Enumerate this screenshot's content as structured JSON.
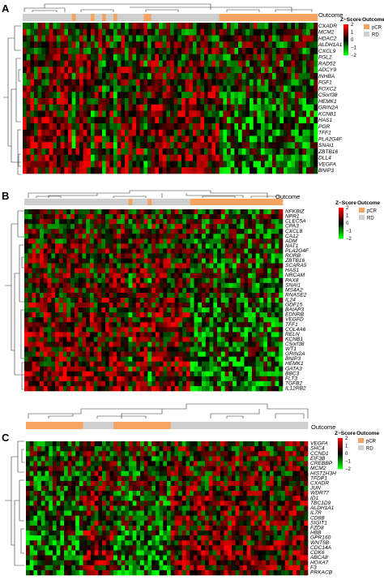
{
  "colors": {
    "high": "#ff0000",
    "mid": "#000000",
    "low": "#00ff00",
    "pCR": "#f4a460",
    "RD": "#cfcfcf"
  },
  "legend": {
    "title": "Z−Score",
    "ticks": [
      "2",
      "1",
      "0",
      "−1",
      "−2"
    ],
    "outcome_title": "Outcome",
    "pcr": "pCR",
    "rd": "RD"
  },
  "panels": [
    {
      "label": "A",
      "outcome_label": "Outcome",
      "outcome": "RRRRRRRRRRRRRPRRRRPRRPRRPRRRRRRRPPRRRRRRRRRRRRRRRRRRPPPPPPPPPPPPPPPPPPPPPPPPPP",
      "genes": [
        "CXADR",
        "MCM2",
        "HDAC2",
        "ALDH1A1",
        "CXCL9",
        "FGL2",
        "RAD52",
        "ADCY9",
        "INHBA",
        "FGF1",
        "FOXC2",
        "C5orf38",
        "HEMK1",
        "GRIN2A",
        "KCNB1",
        "HAS1",
        "PGR",
        "TFF1",
        "PLA2G4F",
        "SNAI1",
        "ZBTB16",
        "DLL4",
        "VEGFA",
        "BNIP3"
      ]
    },
    {
      "label": "B",
      "outcome_label": "Outcome",
      "outcome": "RRRRRRRRRRRRRRRRRRRRRRRRRRRPRRRRPRRRRRRRRRRPPPPPPPPPPPPPPPPPPPPPPPP",
      "genes": [
        "NFKBIZ",
        "NPR1",
        "CLEC5A",
        "CPA3",
        "CXCL8",
        "CA12",
        "ADM",
        "NAT1",
        "PLA2G4F",
        "RORB",
        "ZBTB16",
        "SCARA5",
        "HAS1",
        "NRCAM",
        "PAX8",
        "SNAI1",
        "MS4A2",
        "RNASE2",
        "IL24",
        "GDF15",
        "BAIAP3",
        "EDNRB",
        "VEGFD",
        "TFF1",
        "COL4A6",
        "RELN",
        "KCNB1",
        "C5orf38",
        "WT1",
        "GRIN2A",
        "BNIP3",
        "HEMK1",
        "GATA3",
        "BBC3",
        "FLT3",
        "TGFB2",
        "IL12RB2"
      ]
    },
    {
      "label": "C",
      "outcome_label": "Outcome",
      "outcome": "PPPPPPPPPPPPPPPRRRRRRRRPPPPPPPPPPPPPPPRRRRRRRRRRRRRRRRRRRRRRRRRRRRRRRRRRRR",
      "genes": [
        "VEGFA",
        "SHC4",
        "CCND1",
        "EIF3B",
        "CREBBP",
        "MCM2",
        "HIST1H3H",
        "TFDP1",
        "CXADR",
        "JUN",
        "WDR77",
        "ID1",
        "TBC1D9",
        "ALDH1A1",
        "IL7R",
        "CD8B",
        "SIGIT1",
        "FZD8",
        "HBB",
        "GPR160",
        "WNT5B",
        "CDC14A",
        "CDK6",
        "ABCA8",
        "HOXA7",
        "F3",
        "PRKACB"
      ]
    }
  ]
}
